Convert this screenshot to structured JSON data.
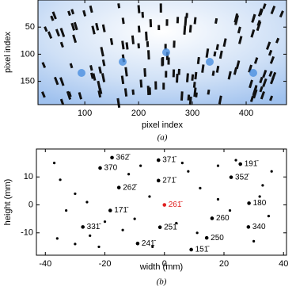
{
  "chart_data": [
    {
      "type": "image",
      "xlabel": "pixel index",
      "ylabel": "pixel index",
      "caption": "(a)",
      "xlim": [
        13,
        475
      ],
      "ylim": [
        193,
        0
      ],
      "xticks": [
        100,
        200,
        300,
        400
      ],
      "yticks": [
        50,
        100,
        150
      ],
      "color": "#4a8fe0"
    },
    {
      "type": "scatter",
      "xlabel": "width (mm)",
      "ylabel": "height (mm)",
      "caption": "(b)",
      "xlim": [
        -43,
        41
      ],
      "ylim": [
        -18,
        20
      ],
      "xticks": [
        -40,
        -20,
        0,
        20,
        40
      ],
      "yticks": [
        -10,
        0,
        10
      ],
      "series": [
        {
          "color": "#000000",
          "x": [
            -17.6,
            -21.6,
            -2,
            25.5,
            22.4,
            -15.3,
            -2,
            28.4,
            -18.2,
            16,
            -1.5,
            28.2,
            -27.4,
            14.2,
            -9,
            9,
            -37,
            -35,
            -30,
            -33,
            -25,
            -22,
            -12,
            -8,
            -5,
            -20,
            -26,
            -36,
            -10,
            4,
            8,
            12,
            18,
            22,
            30,
            33,
            36,
            35,
            24,
            18,
            -14,
            -4,
            6,
            11,
            -30,
            32
          ],
          "y": [
            16.9,
            13.2,
            16,
            14.6,
            9.9,
            6.2,
            8.7,
            0.6,
            -2,
            -4.8,
            -8,
            -7.9,
            -7.9,
            -11.8,
            -13.8,
            -16,
            15,
            9,
            4,
            -2,
            -11,
            -15,
            11,
            14,
            3,
            -6,
            1,
            -12,
            -5,
            -6.5,
            12,
            6,
            2,
            -2,
            -13,
            7,
            12,
            -4,
            16,
            14,
            -9,
            -15,
            15,
            -10,
            -14,
            3
          ],
          "labels": [
            "362̄",
            "370",
            "371̄",
            "191̄",
            "352̄",
            "262̄",
            "271̄",
            "180",
            "171̄",
            "260",
            "251̄",
            "340",
            "331̄",
            "250",
            "241̄",
            "151̄",
            null,
            null,
            null,
            null,
            null,
            null,
            null,
            null,
            null,
            null,
            null,
            null,
            null,
            null,
            null,
            null,
            null,
            null,
            null,
            null,
            null,
            null,
            null,
            null,
            null,
            null,
            null,
            null,
            null,
            null
          ]
        },
        {
          "color": "#e02020",
          "x": [
            0
          ],
          "y": [
            0
          ],
          "labels": [
            "261̄"
          ]
        }
      ]
    }
  ]
}
